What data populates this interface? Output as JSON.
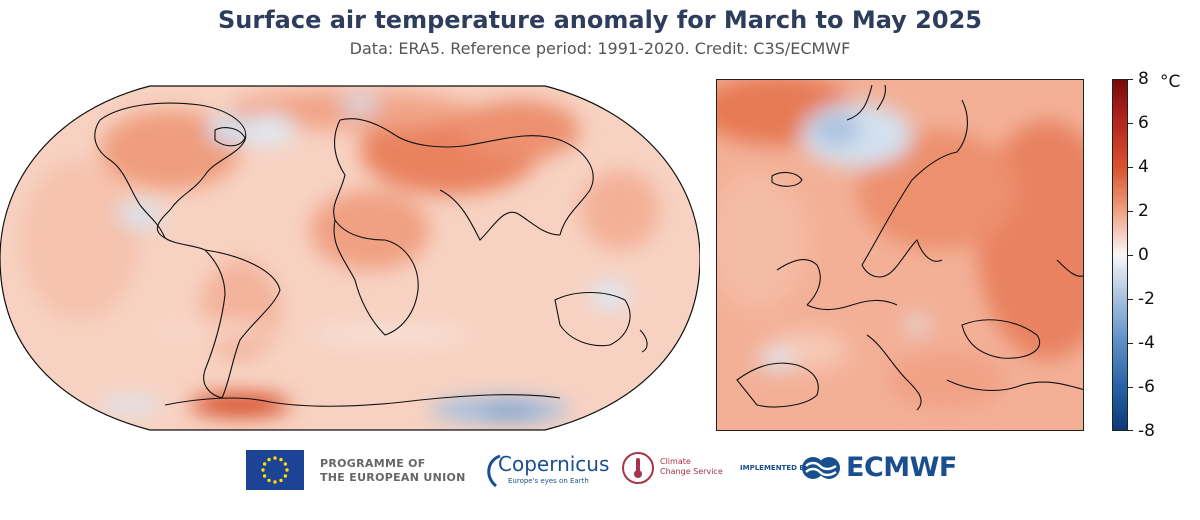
{
  "title": "Surface air temperature anomaly for March to May 2025",
  "subtitle": "Data: ERA5.  Reference period: 1991-2020.  Credit: C3S/ECMWF",
  "colorbar": {
    "unit": "°C",
    "ticks": [
      "8",
      "6",
      "4",
      "2",
      "0",
      "-2",
      "-4",
      "-6",
      "-8"
    ],
    "range": [
      -8,
      8
    ],
    "colors": {
      "cold": "#0b3a78",
      "neutral": "#f7f7f7",
      "warm": "#7a0a0a"
    }
  },
  "map_colors": {
    "ocean_base": "#f6cbb8",
    "warm": "#ee8f6c",
    "hot": "#d9522f",
    "cool": "#c8dbee",
    "cold": "#7ea7d1",
    "coast": "#111111"
  },
  "footer": {
    "eu_text_line1": "PROGRAMME OF",
    "eu_text_line2": "THE EUROPEAN UNION",
    "copernicus": "Copernicus",
    "copernicus_tag": "Europe's eyes on Earth",
    "c3s_line1": "Climate",
    "c3s_line2": "Change Service",
    "implemented_by": "IMPLEMENTED BY",
    "ecmwf": "ECMWF"
  }
}
